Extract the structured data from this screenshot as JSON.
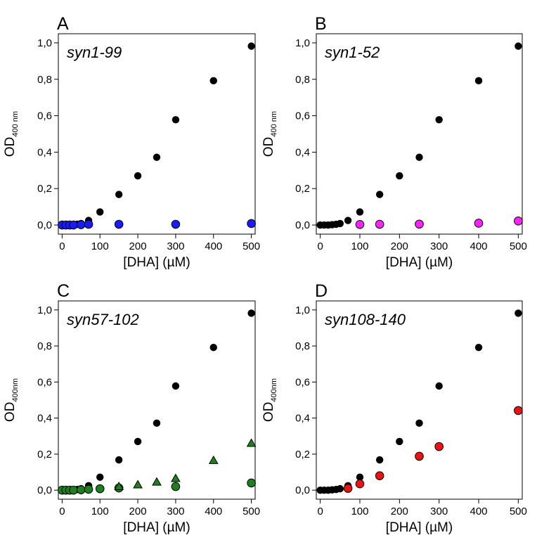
{
  "colors": {
    "reference": "#000000",
    "syn1_99": "#1a1aff",
    "syn1_52": "#ff22ff",
    "syn57_102": "#1e7f1e",
    "syn108_140": "#ee1111"
  },
  "chart_data": [
    {
      "type": "scatter",
      "panel_letter": "A",
      "title": "syn1-99",
      "xlabel": "[DHA] (µM)",
      "ylabel": "OD",
      "ylabel_sub": "400 nm",
      "xlim": [
        -10,
        510
      ],
      "ylim": [
        -0.05,
        1.05
      ],
      "xticks": [
        "0",
        "100",
        "200",
        "300",
        "400",
        "500"
      ],
      "yticks": [
        "0,0",
        "0,2",
        "0,4",
        "0,6",
        "0,8",
        "1,0"
      ],
      "grid": false,
      "series": [
        {
          "marker": "circle",
          "color": "#000000",
          "x": [
            0,
            10,
            20,
            30,
            40,
            50,
            70,
            100,
            150,
            200,
            250,
            300,
            400,
            500
          ],
          "y": [
            0.0,
            0.0,
            0.0,
            0.002,
            0.004,
            0.008,
            0.025,
            0.072,
            0.168,
            0.27,
            0.372,
            0.578,
            0.792,
            0.982
          ]
        },
        {
          "marker": "circle",
          "color": "#1a1aff",
          "x": [
            0,
            10,
            20,
            30,
            50,
            70,
            150,
            300,
            500
          ],
          "y": [
            0.0,
            0.0,
            0.0,
            0.0,
            0.002,
            0.004,
            0.004,
            0.004,
            0.008
          ]
        }
      ]
    },
    {
      "type": "scatter",
      "panel_letter": "B",
      "title": "syn1-52",
      "xlabel": "[DHA] (µM)",
      "ylabel": "OD",
      "ylabel_sub": "400 nm",
      "xlim": [
        -10,
        510
      ],
      "ylim": [
        -0.05,
        1.05
      ],
      "xticks": [
        "0",
        "100",
        "200",
        "300",
        "400",
        "500"
      ],
      "yticks": [
        "0,0",
        "0,2",
        "0,4",
        "0,6",
        "0,8",
        "1,0"
      ],
      "grid": false,
      "series": [
        {
          "marker": "circle",
          "color": "#000000",
          "x": [
            0,
            10,
            20,
            30,
            40,
            50,
            70,
            100,
            150,
            200,
            250,
            300,
            400,
            500
          ],
          "y": [
            0.0,
            0.0,
            0.0,
            0.002,
            0.004,
            0.008,
            0.025,
            0.072,
            0.168,
            0.27,
            0.372,
            0.578,
            0.792,
            0.982
          ]
        },
        {
          "marker": "circle",
          "color": "#ff22ff",
          "x": [
            100,
            150,
            250,
            400,
            500
          ],
          "y": [
            0.003,
            0.004,
            0.005,
            0.01,
            0.022
          ]
        }
      ]
    },
    {
      "type": "scatter",
      "panel_letter": "C",
      "title": "syn57-102",
      "xlabel": "[DHA] (µM)",
      "ylabel": "OD",
      "ylabel_sub": "400nm",
      "xlim": [
        -10,
        510
      ],
      "ylim": [
        -0.05,
        1.05
      ],
      "xticks": [
        "0",
        "100",
        "200",
        "300",
        "400",
        "500"
      ],
      "yticks": [
        "0,0",
        "0,2",
        "0,4",
        "0,6",
        "0,8",
        "1,0"
      ],
      "grid": false,
      "series": [
        {
          "marker": "circle",
          "color": "#000000",
          "x": [
            0,
            10,
            20,
            30,
            40,
            50,
            70,
            100,
            150,
            200,
            250,
            300,
            400,
            500
          ],
          "y": [
            0.0,
            0.0,
            0.0,
            0.002,
            0.004,
            0.008,
            0.025,
            0.072,
            0.168,
            0.27,
            0.372,
            0.578,
            0.792,
            0.982
          ]
        },
        {
          "marker": "circle",
          "color": "#1e7f1e",
          "x": [
            0,
            10,
            20,
            30,
            50,
            70,
            100,
            150,
            300,
            500
          ],
          "y": [
            0.0,
            0.0,
            0.0,
            0.0,
            0.002,
            0.005,
            0.008,
            0.012,
            0.02,
            0.04
          ]
        },
        {
          "marker": "triangle",
          "color": "#1e7f1e",
          "x": [
            150,
            200,
            250,
            300,
            400,
            500
          ],
          "y": [
            0.02,
            0.03,
            0.045,
            0.065,
            0.165,
            0.26
          ]
        }
      ]
    },
    {
      "type": "scatter",
      "panel_letter": "D",
      "title": "syn108-140",
      "xlabel": "[DHA] (µM)",
      "ylabel": "OD",
      "ylabel_sub": "400nm",
      "xlim": [
        -10,
        510
      ],
      "ylim": [
        -0.05,
        1.05
      ],
      "xticks": [
        "0",
        "100",
        "200",
        "300",
        "400",
        "500"
      ],
      "yticks": [
        "0,0",
        "0,2",
        "0,4",
        "0,6",
        "0,8",
        "1,0"
      ],
      "grid": false,
      "series": [
        {
          "marker": "circle",
          "color": "#000000",
          "x": [
            0,
            10,
            20,
            30,
            40,
            50,
            70,
            100,
            150,
            200,
            250,
            300,
            400,
            500
          ],
          "y": [
            0.0,
            0.0,
            0.0,
            0.002,
            0.004,
            0.008,
            0.025,
            0.072,
            0.168,
            0.27,
            0.372,
            0.578,
            0.792,
            0.982
          ]
        },
        {
          "marker": "circle",
          "color": "#ee1111",
          "x": [
            70,
            100,
            150,
            250,
            300,
            500
          ],
          "y": [
            0.01,
            0.035,
            0.08,
            0.188,
            0.242,
            0.442
          ]
        }
      ]
    }
  ]
}
